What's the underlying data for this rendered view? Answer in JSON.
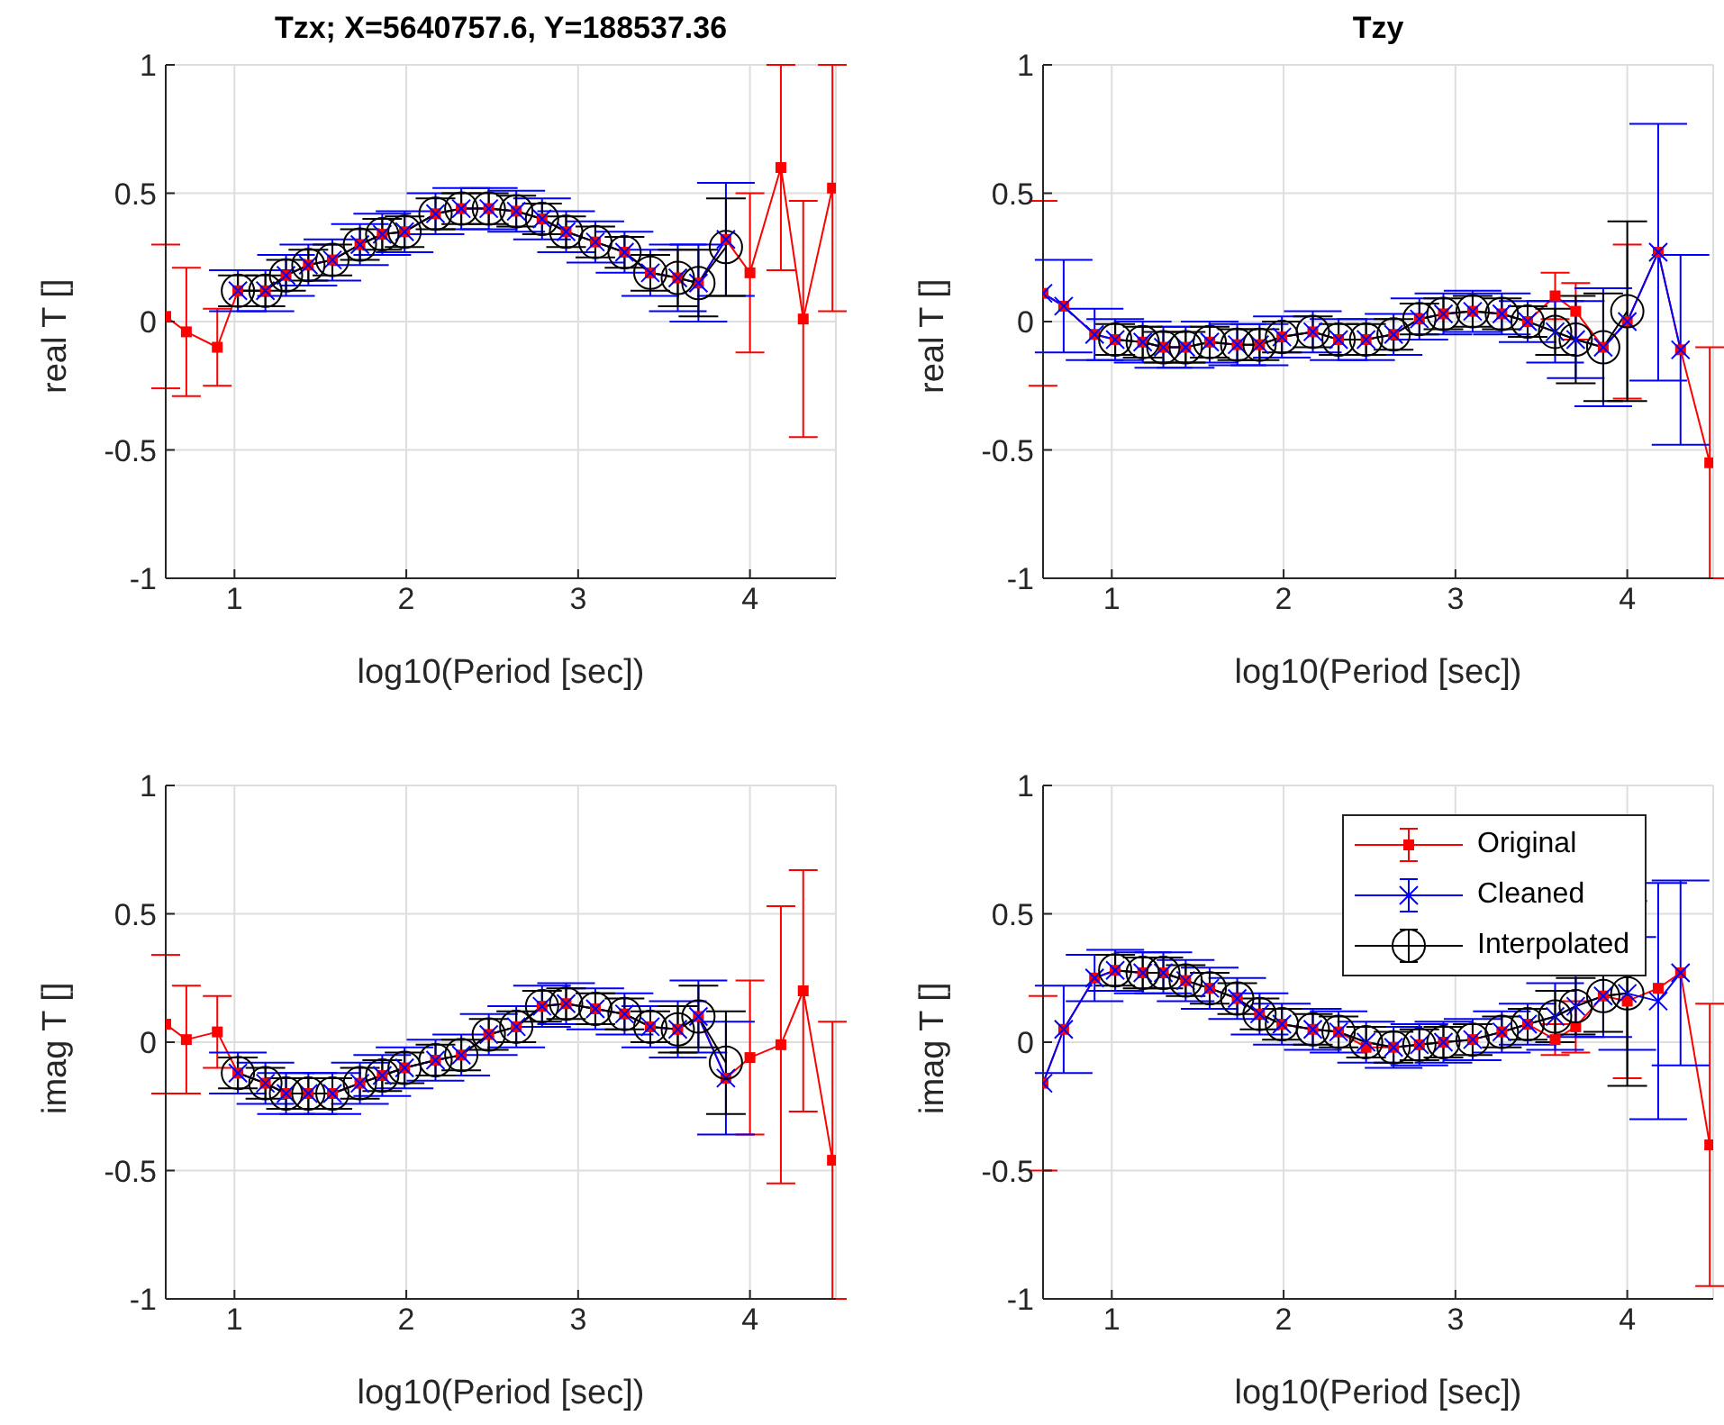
{
  "chart_data": [
    {
      "type": "line",
      "title": "Tzx; X=5640757.6, Y=188537.36",
      "xlabel": "log10(Period [sec])",
      "ylabel": "real T []",
      "xlim": [
        0.6,
        4.5
      ],
      "ylim": [
        -1,
        1
      ],
      "xticks": [
        1,
        2,
        3,
        4
      ],
      "yticks": [
        -1,
        -0.5,
        0,
        0.5,
        1
      ],
      "grid": true,
      "legend": false,
      "series": [
        {
          "color": "#ff0000",
          "marker": "square",
          "x": [
            0.6,
            0.72,
            0.9,
            1.02,
            1.18,
            1.3,
            1.43,
            1.57,
            1.73,
            1.86,
            1.99,
            2.17,
            2.32,
            2.48,
            2.64,
            2.79,
            2.93,
            3.1,
            3.27,
            3.42,
            3.58,
            3.7,
            3.86,
            4.0,
            4.18,
            4.31,
            4.48
          ],
          "values": [
            0.02,
            -0.04,
            -0.1,
            0.12,
            0.12,
            0.18,
            0.22,
            0.24,
            0.3,
            0.34,
            0.35,
            0.42,
            0.44,
            0.44,
            0.43,
            0.4,
            0.35,
            0.31,
            0.27,
            0.19,
            0.17,
            0.15,
            0.32,
            0.19,
            0.6,
            0.01,
            0.52
          ],
          "errors": [
            0.28,
            0.25,
            0.15,
            null,
            null,
            null,
            null,
            null,
            null,
            null,
            null,
            null,
            null,
            null,
            null,
            null,
            null,
            null,
            null,
            null,
            null,
            null,
            null,
            0.31,
            0.4,
            0.46,
            0.48
          ]
        },
        {
          "color": "#0000ff",
          "marker": "cross",
          "x": [
            1.02,
            1.18,
            1.3,
            1.43,
            1.57,
            1.73,
            1.86,
            1.99,
            2.17,
            2.32,
            2.48,
            2.64,
            2.79,
            2.93,
            3.1,
            3.27,
            3.42,
            3.58,
            3.7,
            3.86
          ],
          "values": [
            0.12,
            0.12,
            0.18,
            0.22,
            0.24,
            0.3,
            0.34,
            0.35,
            0.42,
            0.44,
            0.44,
            0.43,
            0.4,
            0.35,
            0.31,
            0.27,
            0.19,
            0.17,
            0.15,
            0.32
          ],
          "errors": [
            0.08,
            0.08,
            0.08,
            0.08,
            0.08,
            0.08,
            0.08,
            0.08,
            0.08,
            0.08,
            0.08,
            0.08,
            0.08,
            0.08,
            0.08,
            0.08,
            0.09,
            0.13,
            0.15,
            0.22
          ]
        },
        {
          "color": "#000000",
          "marker": "circle",
          "x": [
            1.02,
            1.18,
            1.3,
            1.43,
            1.57,
            1.73,
            1.86,
            1.99,
            2.17,
            2.32,
            2.48,
            2.64,
            2.79,
            2.93,
            3.1,
            3.27,
            3.42,
            3.58,
            3.7,
            3.86
          ],
          "values": [
            0.12,
            0.12,
            0.18,
            0.22,
            0.24,
            0.3,
            0.34,
            0.35,
            0.42,
            0.44,
            0.44,
            0.43,
            0.4,
            0.35,
            0.31,
            0.27,
            0.19,
            0.17,
            0.15,
            0.29
          ],
          "errors": [
            0.06,
            0.06,
            0.06,
            0.06,
            0.06,
            0.06,
            0.06,
            0.06,
            0.06,
            0.06,
            0.06,
            0.06,
            0.06,
            0.06,
            0.06,
            0.06,
            0.07,
            0.11,
            0.13,
            0.19
          ]
        }
      ]
    },
    {
      "type": "line",
      "title": "Tzy",
      "xlabel": "log10(Period [sec])",
      "ylabel": "real T []",
      "xlim": [
        0.6,
        4.5
      ],
      "ylim": [
        -1,
        1
      ],
      "xticks": [
        1,
        2,
        3,
        4
      ],
      "yticks": [
        -1,
        -0.5,
        0,
        0.5,
        1
      ],
      "grid": true,
      "legend": false,
      "series": [
        {
          "color": "#ff0000",
          "marker": "square",
          "x": [
            0.6,
            0.72,
            0.9,
            1.02,
            1.18,
            1.3,
            1.43,
            1.57,
            1.73,
            1.86,
            1.99,
            2.17,
            2.32,
            2.48,
            2.64,
            2.79,
            2.93,
            3.1,
            3.27,
            3.42,
            3.58,
            3.7,
            3.86,
            4.0,
            4.18,
            4.31,
            4.48
          ],
          "values": [
            0.11,
            0.06,
            -0.05,
            -0.07,
            -0.08,
            -0.1,
            -0.1,
            -0.08,
            -0.09,
            -0.09,
            -0.06,
            -0.04,
            -0.07,
            -0.07,
            -0.05,
            0.01,
            0.03,
            0.04,
            0.03,
            0.0,
            0.1,
            0.04,
            -0.1,
            0.0,
            0.27,
            -0.11,
            -0.55
          ],
          "errors": [
            0.36,
            null,
            null,
            null,
            null,
            null,
            null,
            null,
            null,
            null,
            null,
            null,
            null,
            null,
            null,
            null,
            null,
            null,
            null,
            null,
            0.09,
            0.11,
            null,
            0.3,
            null,
            null,
            0.45
          ]
        },
        {
          "color": "#0000ff",
          "marker": "cross",
          "x": [
            0.6,
            0.72,
            0.9,
            1.02,
            1.18,
            1.3,
            1.43,
            1.57,
            1.73,
            1.86,
            1.99,
            2.17,
            2.32,
            2.48,
            2.64,
            2.79,
            2.93,
            3.1,
            3.27,
            3.42,
            3.58,
            3.7,
            3.86,
            4.0,
            4.18,
            4.31
          ],
          "values": [
            0.11,
            0.06,
            -0.05,
            -0.07,
            -0.08,
            -0.1,
            -0.1,
            -0.08,
            -0.09,
            -0.09,
            -0.06,
            -0.04,
            -0.07,
            -0.07,
            -0.05,
            0.01,
            0.03,
            0.04,
            0.03,
            0.0,
            -0.04,
            -0.07,
            -0.1,
            0.0,
            0.27,
            -0.11
          ],
          "errors": [
            null,
            0.18,
            0.1,
            0.08,
            0.08,
            0.08,
            0.08,
            0.08,
            0.08,
            0.08,
            0.08,
            0.08,
            0.08,
            0.08,
            0.08,
            0.08,
            0.08,
            0.08,
            0.08,
            0.08,
            0.12,
            0.15,
            0.23,
            null,
            0.5,
            0.37
          ]
        },
        {
          "color": "#000000",
          "marker": "circle",
          "x": [
            1.02,
            1.18,
            1.3,
            1.43,
            1.57,
            1.73,
            1.86,
            1.99,
            2.17,
            2.32,
            2.48,
            2.64,
            2.79,
            2.93,
            3.1,
            3.27,
            3.42,
            3.58,
            3.7,
            3.86,
            4.0
          ],
          "values": [
            -0.07,
            -0.08,
            -0.1,
            -0.1,
            -0.08,
            -0.09,
            -0.09,
            -0.06,
            -0.04,
            -0.07,
            -0.07,
            -0.05,
            0.01,
            0.03,
            0.04,
            0.03,
            0.0,
            -0.04,
            -0.07,
            -0.1,
            0.04
          ],
          "errors": [
            0.06,
            0.06,
            0.06,
            0.06,
            0.06,
            0.06,
            0.06,
            0.06,
            0.06,
            0.06,
            0.06,
            0.06,
            0.06,
            0.06,
            0.06,
            0.06,
            0.06,
            0.09,
            0.17,
            0.21,
            0.35
          ]
        }
      ]
    },
    {
      "type": "line",
      "xlabel": "log10(Period [sec])",
      "ylabel": "imag T []",
      "xlim": [
        0.6,
        4.5
      ],
      "ylim": [
        -1,
        1
      ],
      "xticks": [
        1,
        2,
        3,
        4
      ],
      "yticks": [
        -1,
        -0.5,
        0,
        0.5,
        1
      ],
      "grid": true,
      "legend": false,
      "series": [
        {
          "color": "#ff0000",
          "marker": "square",
          "x": [
            0.6,
            0.72,
            0.9,
            1.02,
            1.18,
            1.3,
            1.43,
            1.57,
            1.73,
            1.86,
            1.99,
            2.17,
            2.32,
            2.48,
            2.64,
            2.79,
            2.93,
            3.1,
            3.27,
            3.42,
            3.58,
            3.7,
            3.86,
            4.0,
            4.18,
            4.31,
            4.48
          ],
          "values": [
            0.07,
            0.01,
            0.04,
            -0.12,
            -0.16,
            -0.2,
            -0.2,
            -0.2,
            -0.16,
            -0.13,
            -0.1,
            -0.07,
            -0.05,
            0.03,
            0.06,
            0.14,
            0.15,
            0.13,
            0.11,
            0.06,
            0.05,
            0.1,
            -0.14,
            -0.06,
            -0.01,
            0.2,
            -0.46
          ],
          "errors": [
            0.27,
            0.21,
            0.14,
            null,
            null,
            null,
            null,
            null,
            null,
            null,
            null,
            null,
            null,
            null,
            null,
            null,
            null,
            null,
            null,
            null,
            null,
            null,
            null,
            0.3,
            0.54,
            0.47,
            0.54
          ]
        },
        {
          "color": "#0000ff",
          "marker": "cross",
          "x": [
            1.02,
            1.18,
            1.3,
            1.43,
            1.57,
            1.73,
            1.86,
            1.99,
            2.17,
            2.32,
            2.48,
            2.64,
            2.79,
            2.93,
            3.1,
            3.27,
            3.42,
            3.58,
            3.7,
            3.86
          ],
          "values": [
            -0.12,
            -0.16,
            -0.2,
            -0.2,
            -0.2,
            -0.16,
            -0.13,
            -0.1,
            -0.07,
            -0.05,
            0.03,
            0.06,
            0.14,
            0.15,
            0.13,
            0.11,
            0.06,
            0.05,
            0.1,
            -0.14
          ],
          "errors": [
            0.08,
            0.08,
            0.08,
            0.08,
            0.08,
            0.08,
            0.08,
            0.08,
            0.08,
            0.08,
            0.08,
            0.08,
            0.08,
            0.08,
            0.08,
            0.08,
            0.08,
            0.11,
            0.14,
            0.22
          ]
        },
        {
          "color": "#000000",
          "marker": "circle",
          "x": [
            1.02,
            1.18,
            1.3,
            1.43,
            1.57,
            1.73,
            1.86,
            1.99,
            2.17,
            2.32,
            2.48,
            2.64,
            2.79,
            2.93,
            3.1,
            3.27,
            3.42,
            3.58,
            3.7,
            3.86
          ],
          "values": [
            -0.12,
            -0.16,
            -0.2,
            -0.2,
            -0.2,
            -0.16,
            -0.13,
            -0.1,
            -0.07,
            -0.05,
            0.03,
            0.06,
            0.14,
            0.15,
            0.13,
            0.11,
            0.06,
            0.05,
            0.1,
            -0.08
          ],
          "errors": [
            0.06,
            0.06,
            0.06,
            0.06,
            0.06,
            0.06,
            0.06,
            0.06,
            0.06,
            0.06,
            0.06,
            0.06,
            0.06,
            0.06,
            0.06,
            0.06,
            0.06,
            0.09,
            0.12,
            0.2
          ]
        }
      ]
    },
    {
      "type": "line",
      "xlabel": "log10(Period [sec])",
      "ylabel": "imag T []",
      "xlim": [
        0.6,
        4.5
      ],
      "ylim": [
        -1,
        1
      ],
      "xticks": [
        1,
        2,
        3,
        4
      ],
      "yticks": [
        -1,
        -0.5,
        0,
        0.5,
        1
      ],
      "grid": true,
      "legend": "top right",
      "series": [
        {
          "name": "Original",
          "color": "#ff0000",
          "marker": "square",
          "x": [
            0.6,
            0.72,
            0.9,
            1.02,
            1.18,
            1.3,
            1.43,
            1.57,
            1.73,
            1.86,
            1.99,
            2.17,
            2.32,
            2.48,
            2.64,
            2.79,
            2.93,
            3.1,
            3.27,
            3.42,
            3.58,
            3.7,
            3.86,
            4.0,
            4.18,
            4.31,
            4.48
          ],
          "values": [
            -0.16,
            0.05,
            0.25,
            0.28,
            0.27,
            0.27,
            0.24,
            0.21,
            0.17,
            0.11,
            0.07,
            0.05,
            0.04,
            -0.02,
            -0.02,
            -0.01,
            0.0,
            0.01,
            0.04,
            0.07,
            0.01,
            0.06,
            0.18,
            0.16,
            0.21,
            0.27,
            -0.4
          ],
          "errors": [
            0.34,
            null,
            null,
            null,
            null,
            null,
            null,
            null,
            null,
            null,
            null,
            null,
            null,
            null,
            null,
            null,
            null,
            null,
            null,
            null,
            0.06,
            0.1,
            null,
            0.3,
            null,
            null,
            0.55
          ]
        },
        {
          "name": "Cleaned",
          "color": "#0000ff",
          "marker": "cross",
          "x": [
            0.6,
            0.72,
            0.9,
            1.02,
            1.18,
            1.3,
            1.43,
            1.57,
            1.73,
            1.86,
            1.99,
            2.17,
            2.32,
            2.48,
            2.64,
            2.79,
            2.93,
            3.1,
            3.27,
            3.42,
            3.58,
            3.7,
            3.86,
            4.0,
            4.18,
            4.31
          ],
          "values": [
            -0.16,
            0.05,
            0.25,
            0.28,
            0.27,
            0.27,
            0.24,
            0.21,
            0.17,
            0.11,
            0.07,
            0.05,
            0.04,
            0.0,
            -0.02,
            -0.01,
            0.0,
            0.01,
            0.04,
            0.07,
            0.1,
            0.14,
            0.18,
            0.19,
            0.16,
            0.27
          ],
          "errors": [
            null,
            0.17,
            0.09,
            0.08,
            0.08,
            0.08,
            0.08,
            0.08,
            0.08,
            0.08,
            0.08,
            0.08,
            0.08,
            0.08,
            0.08,
            0.08,
            0.08,
            0.08,
            0.08,
            0.08,
            0.13,
            0.12,
            0.16,
            0.22,
            0.46,
            0.36
          ]
        },
        {
          "name": "Interpolated",
          "color": "#000000",
          "marker": "circle",
          "x": [
            1.02,
            1.18,
            1.3,
            1.43,
            1.57,
            1.73,
            1.86,
            1.99,
            2.17,
            2.32,
            2.48,
            2.64,
            2.79,
            2.93,
            3.1,
            3.27,
            3.42,
            3.58,
            3.7,
            3.86,
            4.0
          ],
          "values": [
            0.28,
            0.27,
            0.27,
            0.24,
            0.21,
            0.17,
            0.11,
            0.07,
            0.05,
            0.04,
            0.0,
            -0.02,
            -0.01,
            0.0,
            0.01,
            0.04,
            0.07,
            0.1,
            0.14,
            0.18,
            0.19
          ],
          "errors": [
            0.06,
            0.06,
            0.06,
            0.06,
            0.06,
            0.06,
            0.06,
            0.06,
            0.06,
            0.06,
            0.06,
            0.06,
            0.06,
            0.06,
            0.06,
            0.06,
            0.06,
            0.1,
            0.11,
            0.14,
            0.36
          ]
        }
      ]
    }
  ]
}
